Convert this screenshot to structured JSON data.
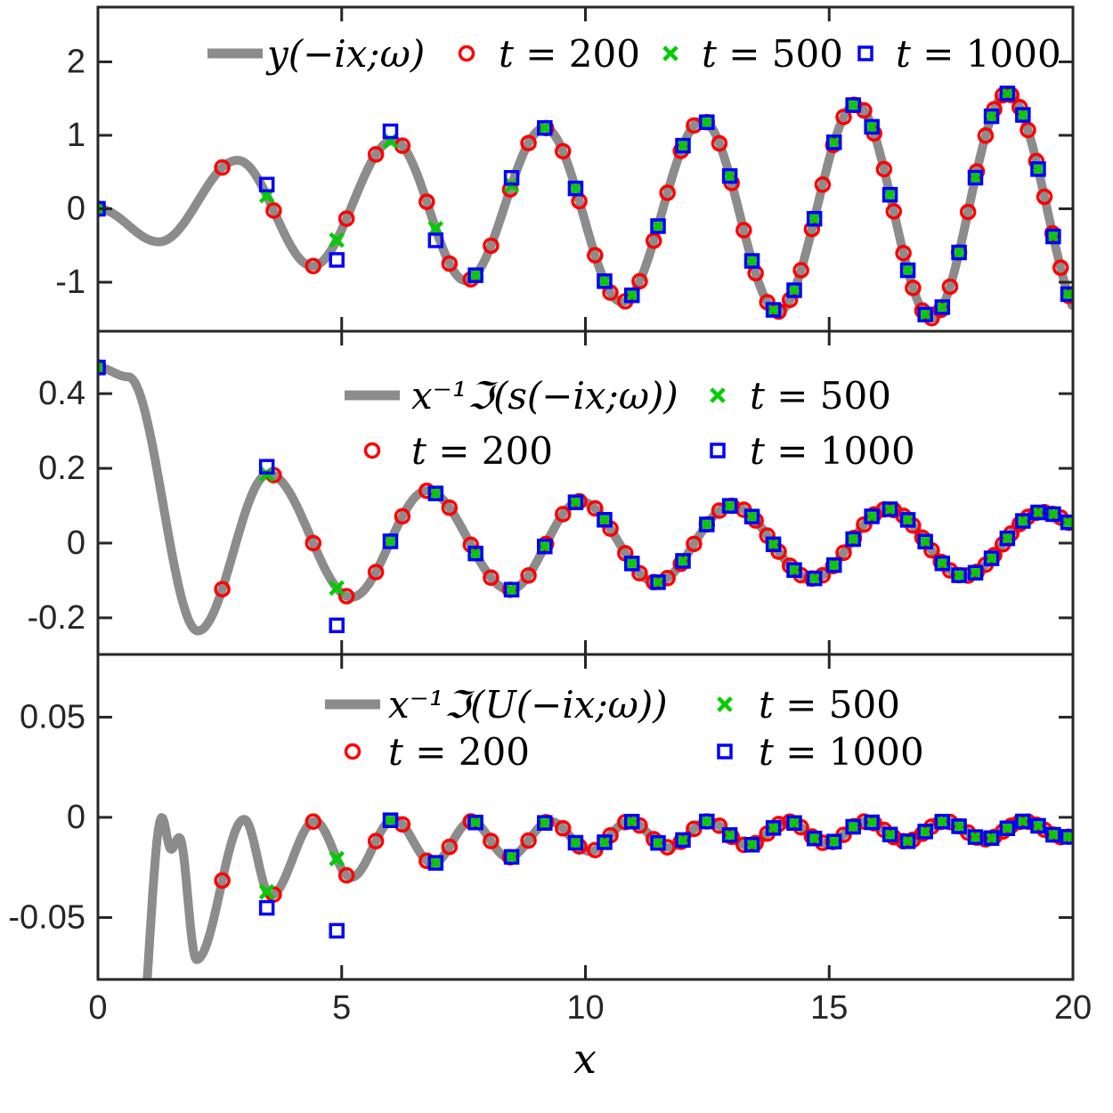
{
  "figure": {
    "background": "#FFFFFF",
    "axis_color": "#262626",
    "tick_text_color": "#262626",
    "curve_color": "#8C8C8C",
    "xlabel": "x",
    "x_axis": {
      "min": 0,
      "max": 20,
      "ticks": [
        0,
        5,
        10,
        15,
        20
      ]
    },
    "marker_styles": {
      "t200": {
        "shape": "circle",
        "color": "#FF0000",
        "label": "t = 200"
      },
      "t500": {
        "shape": "cross",
        "color": "#00CC00",
        "label": "t = 500"
      },
      "t1000": {
        "shape": "square",
        "color": "#0000FF",
        "label": "t = 1000"
      }
    }
  },
  "sample_x": {
    "t200": [
      0,
      2.55,
      3.606,
      4.416,
      5.099,
      5.701,
      6.245,
      6.745,
      7.211,
      7.649,
      8.062,
      8.456,
      8.832,
      9.192,
      9.539,
      9.874,
      10.198,
      10.512,
      10.817,
      11.113,
      11.402,
      11.683,
      11.958,
      12.227,
      12.49,
      12.748,
      13.0,
      13.248,
      13.491,
      13.73,
      13.964,
      14.195,
      14.422,
      14.646,
      14.866,
      15.083,
      15.297,
      15.508,
      15.716,
      15.922,
      16.125,
      16.325,
      16.523,
      16.719,
      16.912,
      17.103,
      17.292,
      17.479,
      17.664,
      17.848,
      18.028,
      18.208,
      18.385,
      18.561,
      18.735,
      18.908,
      19.078,
      19.248,
      19.416,
      19.582,
      19.748,
      19.912
    ],
    "t500": [
      0,
      3.464,
      4.899,
      6.0,
      6.928,
      7.746,
      8.485,
      9.165,
      9.798,
      10.392,
      10.954,
      11.489,
      12.0,
      12.49,
      12.961,
      13.416,
      13.856,
      14.283,
      14.697,
      15.1,
      15.492,
      15.875,
      16.248,
      16.613,
      16.971,
      17.321,
      17.664,
      18.0,
      18.33,
      18.655,
      18.974,
      19.287,
      19.596,
      19.9
    ],
    "t1000": [
      0,
      3.464,
      4.899,
      6.0,
      6.928,
      7.746,
      8.485,
      9.165,
      9.798,
      10.392,
      10.954,
      11.489,
      12.0,
      12.49,
      12.961,
      13.416,
      13.856,
      14.283,
      14.697,
      15.1,
      15.492,
      15.875,
      16.248,
      16.613,
      16.971,
      17.321,
      17.664,
      18.0,
      18.33,
      18.655,
      18.974,
      19.287,
      19.596,
      19.9
    ]
  },
  "chart_data": [
    {
      "panel": "top",
      "type": "line+scatter",
      "curve_label": "y(−ix;ω)",
      "ylim": [
        -1.667,
        2.745
      ],
      "yticks": [
        2,
        1,
        0,
        -1
      ],
      "curve_keypoints": [
        [
          0,
          0.0
        ],
        [
          1.25,
          -0.45
        ],
        [
          2.86,
          0.66
        ],
        [
          4.4,
          -0.78
        ],
        [
          6.06,
          0.93
        ],
        [
          7.55,
          -0.98
        ],
        [
          9.16,
          1.1
        ],
        [
          10.75,
          -1.27
        ],
        [
          12.4,
          1.2
        ],
        [
          13.95,
          -1.4
        ],
        [
          15.55,
          1.42
        ],
        [
          17.1,
          -1.49
        ],
        [
          18.65,
          1.57
        ],
        [
          20.3,
          -1.6
        ]
      ],
      "series": [
        "t200",
        "t500",
        "t1000"
      ],
      "deviations": {
        "t1000": [
          [
            3.464,
            0.15
          ],
          [
            4.899,
            -0.27
          ],
          [
            6.0,
            0.13
          ],
          [
            6.928,
            -0.16
          ],
          [
            8.485,
            0.1
          ]
        ]
      },
      "legend": {
        "style": "row",
        "items": [
          {
            "marker": "line",
            "label": "y(−ix;ω)"
          },
          {
            "marker": "circle",
            "label": "t = 200"
          },
          {
            "marker": "cross",
            "label": "t = 500"
          },
          {
            "marker": "square",
            "label": "t = 1000"
          }
        ]
      }
    },
    {
      "panel": "middle",
      "type": "line+scatter",
      "curve_label": "x⁻¹ℑ(s(−ix;ω))",
      "ylim": [
        -0.298,
        0.567
      ],
      "yticks": [
        0.4,
        0.2,
        0,
        -0.2
      ],
      "curve_keypoints": [
        [
          0,
          0.47
        ],
        [
          0.62,
          0.445
        ],
        [
          2.05,
          -0.235
        ],
        [
          3.5,
          0.185
        ],
        [
          5.2,
          -0.145
        ],
        [
          6.75,
          0.14
        ],
        [
          8.45,
          -0.125
        ],
        [
          9.9,
          0.112
        ],
        [
          11.45,
          -0.105
        ],
        [
          13.0,
          0.1
        ],
        [
          14.65,
          -0.095
        ],
        [
          16.2,
          0.091
        ],
        [
          17.77,
          -0.088
        ],
        [
          19.36,
          0.083
        ],
        [
          21.3,
          -0.07
        ]
      ],
      "series": [
        "t200",
        "t500",
        "t1000"
      ],
      "deviations": {
        "t1000": [
          [
            3.464,
            0.02
          ],
          [
            4.899,
            -0.1
          ]
        ]
      },
      "legend": {
        "style": "grid",
        "items": [
          {
            "marker": "line",
            "label": "x⁻¹ℑ(s(−ix;ω))"
          },
          {
            "marker": "cross",
            "label": "t = 500"
          },
          {
            "marker": "circle",
            "label": "t = 200"
          },
          {
            "marker": "square",
            "label": "t = 1000"
          }
        ]
      }
    },
    {
      "panel": "bottom",
      "type": "line+scatter",
      "curve_label": "x⁻¹ℑ(U(−ix;ω))",
      "ylim": [
        -0.0809,
        0.0813
      ],
      "yticks": [
        0.05,
        0,
        -0.05
      ],
      "curve_keypoints": [
        [
          0.82,
          -0.12
        ],
        [
          1.31,
          0.0
        ],
        [
          1.5,
          -0.016
        ],
        [
          1.67,
          -0.01
        ],
        [
          2.02,
          -0.071
        ],
        [
          3.0,
          -0.001
        ],
        [
          3.54,
          -0.039
        ],
        [
          4.45,
          -0.002
        ],
        [
          5.19,
          -0.03
        ],
        [
          6.07,
          -0.001
        ],
        [
          6.87,
          -0.023
        ],
        [
          7.66,
          -0.002
        ],
        [
          8.42,
          -0.02
        ],
        [
          9.28,
          -0.002
        ],
        [
          10.09,
          -0.017
        ],
        [
          10.9,
          -0.002
        ],
        [
          11.71,
          -0.015
        ],
        [
          12.52,
          -0.002
        ],
        [
          13.33,
          -0.014
        ],
        [
          14.14,
          -0.002
        ],
        [
          14.95,
          -0.013
        ],
        [
          15.76,
          -0.002
        ],
        [
          16.57,
          -0.012
        ],
        [
          17.38,
          -0.002
        ],
        [
          18.19,
          -0.011
        ],
        [
          19.0,
          -0.002
        ],
        [
          19.81,
          -0.01
        ],
        [
          20.6,
          -0.002
        ]
      ],
      "series": [
        "t200",
        "t500",
        "t1000"
      ],
      "deviations": {
        "t1000": [
          [
            3.464,
            -0.008
          ],
          [
            4.899,
            -0.036
          ]
        ]
      },
      "legend": {
        "style": "grid",
        "items": [
          {
            "marker": "line",
            "label": "x⁻¹ℑ(U(−ix;ω))"
          },
          {
            "marker": "cross",
            "label": "t = 500"
          },
          {
            "marker": "circle",
            "label": "t = 200"
          },
          {
            "marker": "square",
            "label": "t = 1000"
          }
        ]
      }
    }
  ]
}
